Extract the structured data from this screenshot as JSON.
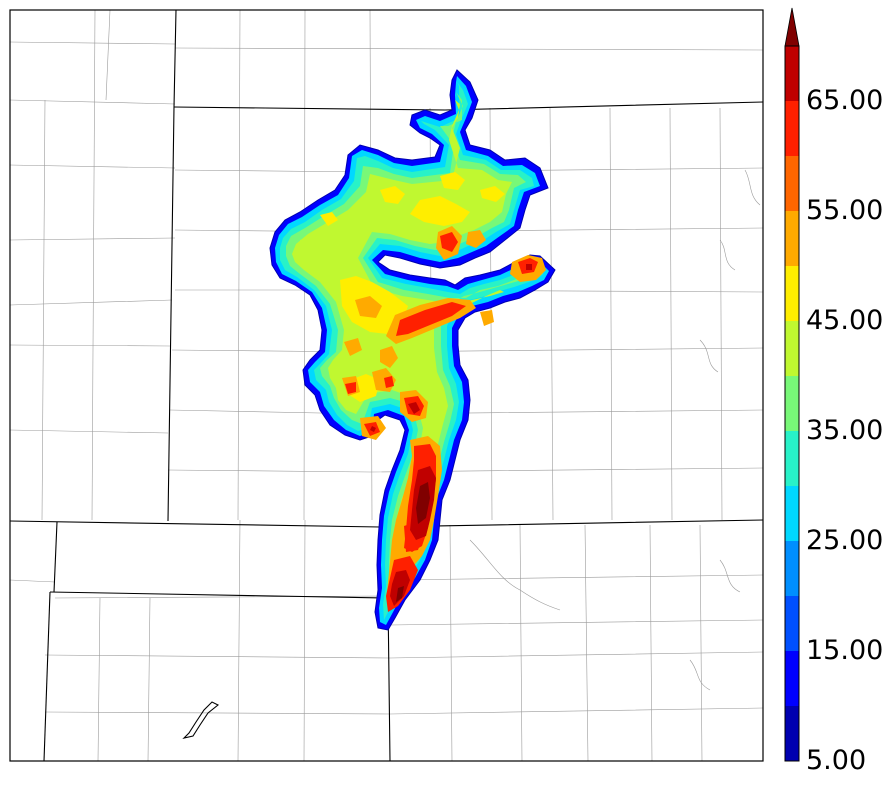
{
  "colorbar": {
    "min": 5,
    "max": 70,
    "step": 5,
    "extend": "max",
    "tick_labels": [
      "5.00",
      "15.00",
      "25.00",
      "35.00",
      "45.00",
      "55.00",
      "65.00"
    ],
    "colors": [
      "#0000b0",
      "#0000ff",
      "#0050ff",
      "#008fff",
      "#00d8ff",
      "#28f2c8",
      "#78f878",
      "#c0f830",
      "#ffee00",
      "#ffaa00",
      "#ff6600",
      "#ff2000",
      "#c00000"
    ],
    "extend_color": "#800000"
  },
  "chart_data": {
    "type": "heatmap",
    "title": "",
    "value_range": [
      5,
      70
    ],
    "contour_levels": [
      5,
      10,
      15,
      20,
      25,
      30,
      35,
      40,
      45,
      50,
      55,
      60,
      65,
      70
    ]
  }
}
